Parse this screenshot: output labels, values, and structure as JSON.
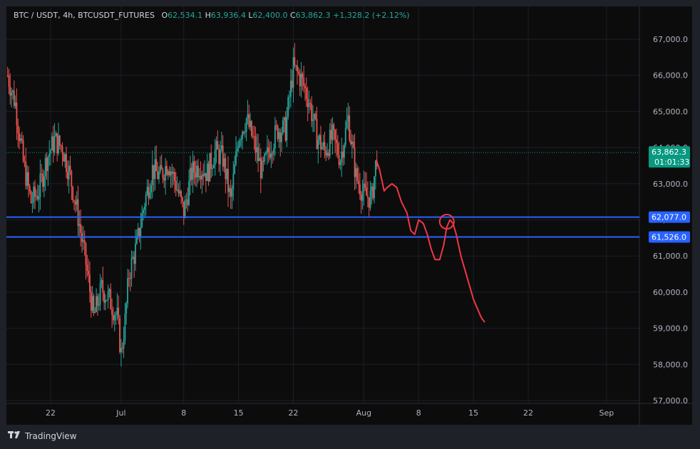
{
  "header": {
    "symbol": "BTC / USDT, 4h, BTCUSDT_FUTURES",
    "o_label": "O",
    "o_value": "62,534.1",
    "h_label": "H",
    "h_value": "63,936.4",
    "l_label": "L",
    "l_value": "62,400.0",
    "c_label": "C",
    "c_value": "63,862.3",
    "change": "+1,328.2 (+2.12%)"
  },
  "brand": {
    "name": "TradingView",
    "icon": "tradingview-logo-icon"
  },
  "colors": {
    "up": "#26a69a",
    "down": "#ef5350",
    "level_line": "#2962ff",
    "price_tag": "#089981",
    "level_tag": "#2962ff",
    "drawing": "#f23645"
  },
  "chart_data": {
    "type": "candlestick",
    "symbol": "BTC / USDT",
    "interval": "4h",
    "ylim": [
      56900,
      67900
    ],
    "y_ticks": [
      "57,000.0",
      "58,000.0",
      "59,000.0",
      "60,000.0",
      "61,000.0",
      "62,000.0",
      "63,000.0",
      "64,000.0",
      "65,000.0",
      "66,000.0",
      "67,000.0"
    ],
    "y_tick_values": [
      57000,
      58000,
      59000,
      60000,
      61000,
      62000,
      63000,
      64000,
      65000,
      66000,
      67000
    ],
    "x_ticks": [
      {
        "label": "22",
        "day": 22
      },
      {
        "label": "Jul",
        "day": 31
      },
      {
        "label": "8",
        "day": 39
      },
      {
        "label": "15",
        "day": 46
      },
      {
        "label": "22",
        "day": 53
      },
      {
        "label": "Aug",
        "day": 62
      },
      {
        "label": "8",
        "day": 69
      },
      {
        "label": "15",
        "day": 76
      },
      {
        "label": "22",
        "day": 83
      },
      {
        "label": "Sep",
        "day": 93
      }
    ],
    "x_range_days": [
      16.35,
      97.2
    ],
    "grid": true,
    "last_price": {
      "value": 63862.3,
      "label": "63,862.3",
      "countdown": "01:01:33"
    },
    "levels": [
      {
        "value": 62077.0,
        "label": "62,077.0"
      },
      {
        "value": 61526.0,
        "label": "61,526.0"
      }
    ],
    "closes_path": [
      [
        16.5,
        66000
      ],
      [
        17.5,
        65200
      ],
      [
        18.5,
        63600
      ],
      [
        19.5,
        62500
      ],
      [
        20.5,
        62800
      ],
      [
        21.5,
        63700
      ],
      [
        22.5,
        64200
      ],
      [
        23.5,
        64000
      ],
      [
        24.5,
        63200
      ],
      [
        25.5,
        62100
      ],
      [
        26.5,
        60800
      ],
      [
        27.5,
        59300
      ],
      [
        28.5,
        60100
      ],
      [
        29.5,
        59800
      ],
      [
        30.5,
        59300
      ],
      [
        31.0,
        58300
      ],
      [
        31.5,
        59200
      ],
      [
        32.0,
        60500
      ],
      [
        33.0,
        61300
      ],
      [
        34.0,
        62500
      ],
      [
        35.0,
        63400
      ],
      [
        36.0,
        63200
      ],
      [
        37.0,
        63600
      ],
      [
        38.0,
        63000
      ],
      [
        39.0,
        62200
      ],
      [
        40.0,
        63300
      ],
      [
        41.0,
        63500
      ],
      [
        42.0,
        63300
      ],
      [
        43.0,
        63900
      ],
      [
        44.0,
        63700
      ],
      [
        45.0,
        62500
      ],
      [
        46.0,
        64300
      ],
      [
        47.0,
        64800
      ],
      [
        48.0,
        64100
      ],
      [
        49.0,
        63300
      ],
      [
        50.0,
        64000
      ],
      [
        51.0,
        64500
      ],
      [
        52.0,
        64500
      ],
      [
        52.5,
        65400
      ],
      [
        53.0,
        66200
      ],
      [
        54.0,
        65900
      ],
      [
        55.0,
        65300
      ],
      [
        56.0,
        64300
      ],
      [
        57.0,
        63900
      ],
      [
        58.0,
        64300
      ],
      [
        59.0,
        63700
      ],
      [
        60.0,
        64800
      ],
      [
        61.0,
        63200
      ],
      [
        62.0,
        62700
      ],
      [
        63.0,
        62600
      ],
      [
        63.7,
        63862
      ]
    ],
    "drawing_path": [
      [
        63.6,
        63650
      ],
      [
        64.0,
        63400
      ],
      [
        64.6,
        62800
      ],
      [
        65.0,
        62900
      ],
      [
        65.6,
        63000
      ],
      [
        66.2,
        62900
      ],
      [
        66.8,
        62500
      ],
      [
        67.5,
        62200
      ],
      [
        68.0,
        61700
      ],
      [
        68.5,
        61600
      ],
      [
        69.0,
        62000
      ],
      [
        69.6,
        61900
      ],
      [
        70.1,
        61600
      ],
      [
        70.6,
        61200
      ],
      [
        71.1,
        60900
      ],
      [
        71.7,
        60900
      ],
      [
        72.2,
        61300
      ],
      [
        72.6,
        61800
      ],
      [
        73.0,
        62000
      ],
      [
        73.4,
        61900
      ],
      [
        73.8,
        61600
      ],
      [
        74.4,
        61000
      ],
      [
        75.2,
        60400
      ],
      [
        76.0,
        59800
      ],
      [
        76.6,
        59500
      ],
      [
        77.0,
        59300
      ],
      [
        77.4,
        59180
      ]
    ],
    "drawing_circle": {
      "day": 72.6,
      "value": 61950
    }
  }
}
